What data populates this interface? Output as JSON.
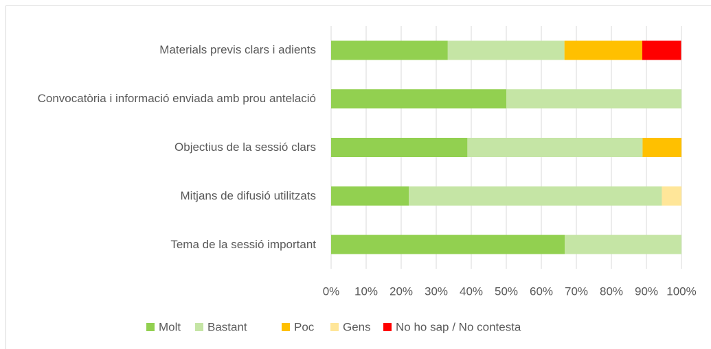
{
  "chart_data": {
    "type": "stacked-barh",
    "categories": [
      "Materials previs clars i adients",
      "Convocatòria i informació enviada amb prou antelació",
      "Objectius de la sessió clars",
      "Mitjans de difusió utilitzats",
      "Tema de la sessió important"
    ],
    "series": [
      {
        "name": "Molt",
        "color": "#92d050",
        "values": [
          33.3,
          50,
          38.9,
          22.2,
          66.7
        ]
      },
      {
        "name": "Bastant",
        "color": "#c5e5a5",
        "values": [
          33.3,
          50,
          50,
          72.2,
          33.3
        ]
      },
      {
        "name": "Poc",
        "color": "#ffc000",
        "values": [
          22.2,
          0,
          11.1,
          0,
          0
        ]
      },
      {
        "name": "Gens",
        "color": "#ffe699",
        "values": [
          0,
          0,
          0,
          5.6,
          0
        ]
      },
      {
        "name": "No ho sap / No contesta",
        "color": "#ff0000",
        "values": [
          11.1,
          0,
          0,
          0,
          0
        ]
      }
    ],
    "xlim": [
      0,
      100
    ],
    "xticks": [
      {
        "value": 0,
        "label": "0%"
      },
      {
        "value": 10,
        "label": "10%"
      },
      {
        "value": 20,
        "label": "20%"
      },
      {
        "value": 30,
        "label": "30%"
      },
      {
        "value": 40,
        "label": "40%"
      },
      {
        "value": 50,
        "label": "50%"
      },
      {
        "value": 60,
        "label": "60%"
      },
      {
        "value": 70,
        "label": "70%"
      },
      {
        "value": 80,
        "label": "80%"
      },
      {
        "value": 90,
        "label": "90%"
      },
      {
        "value": 100,
        "label": "100%"
      }
    ],
    "grid": true,
    "legend": "bottom"
  }
}
